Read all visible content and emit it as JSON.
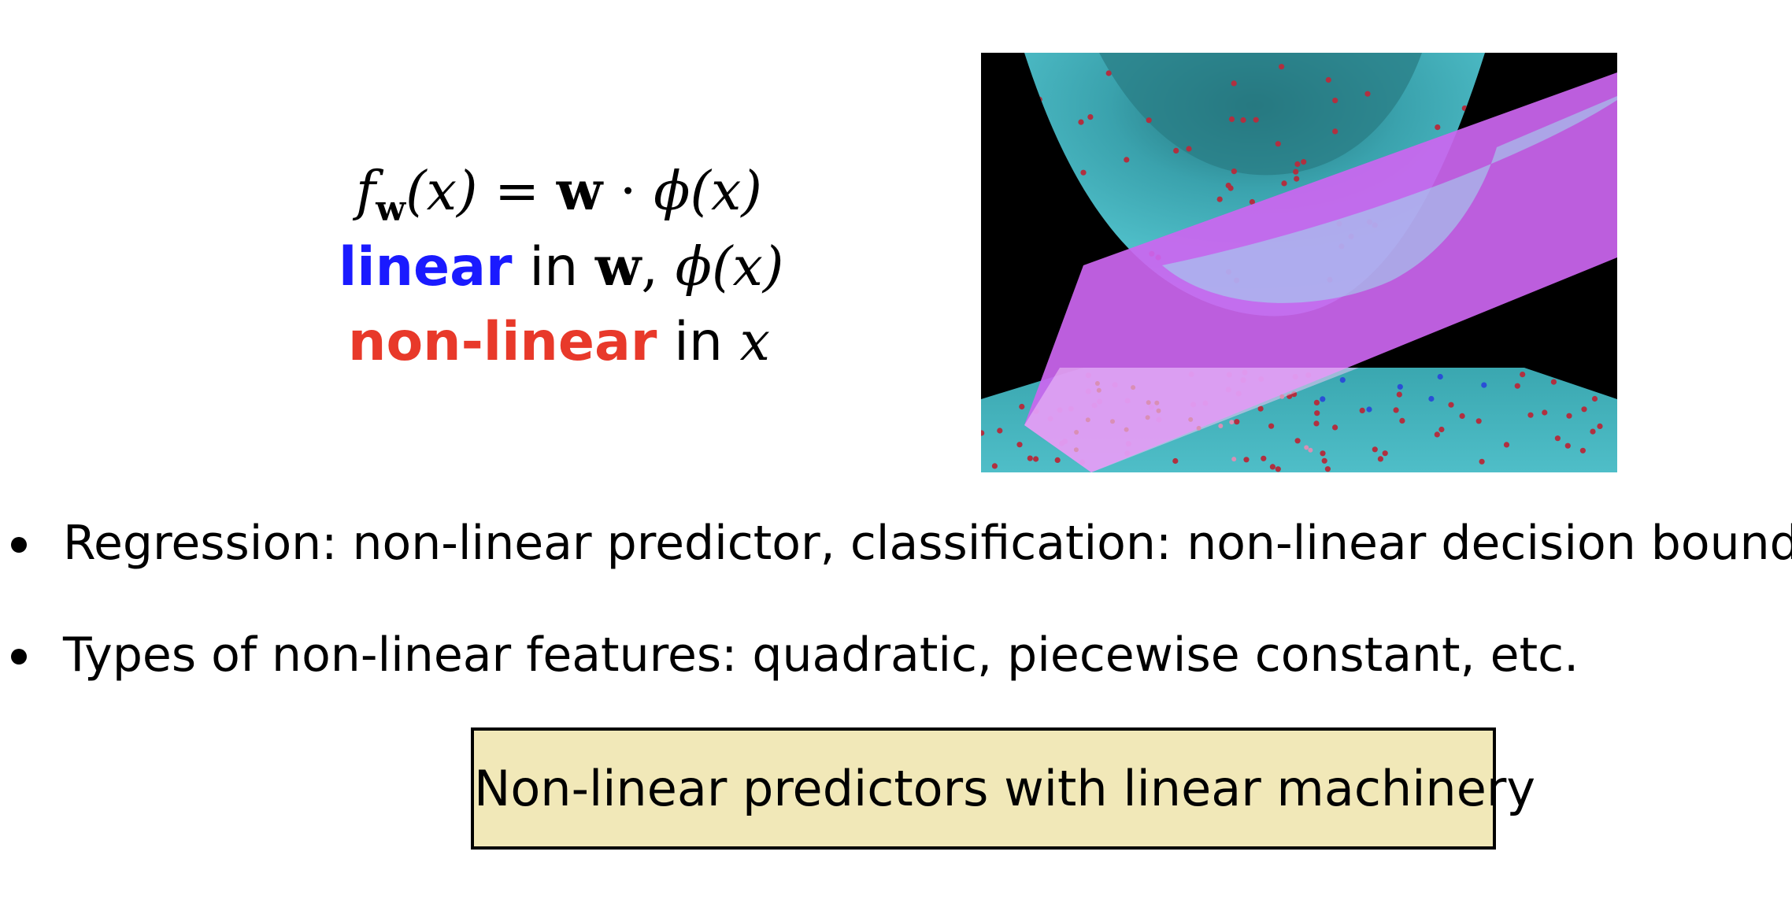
{
  "formula": {
    "line1": {
      "f": "f",
      "w_sub": "w",
      "lhs_arg": "(x)",
      "equals": " = ",
      "w": "w",
      "dot": " · ",
      "phi": "ϕ",
      "rhs_arg": "(x)"
    },
    "line2": {
      "keyword": "linear",
      "in": " in ",
      "w": "w",
      "comma": ", ",
      "phi": "ϕ",
      "arg": "(x)"
    },
    "line3": {
      "keyword": "non-linear",
      "in": " in ",
      "x": "x"
    }
  },
  "colors": {
    "linear_keyword": "#1a1aff",
    "nonlinear_keyword": "#e8392a",
    "callout_background": "#f1e8b8",
    "surface_teal": "#52c4cf",
    "plane_magenta": "#cc66f0"
  },
  "bullets": [
    "Regression: non-linear predictor, classification: non-linear decision boundary",
    "Types of non-linear features: quadratic, piecewise constant, etc."
  ],
  "callout": "Non-linear predictors with linear machinery"
}
